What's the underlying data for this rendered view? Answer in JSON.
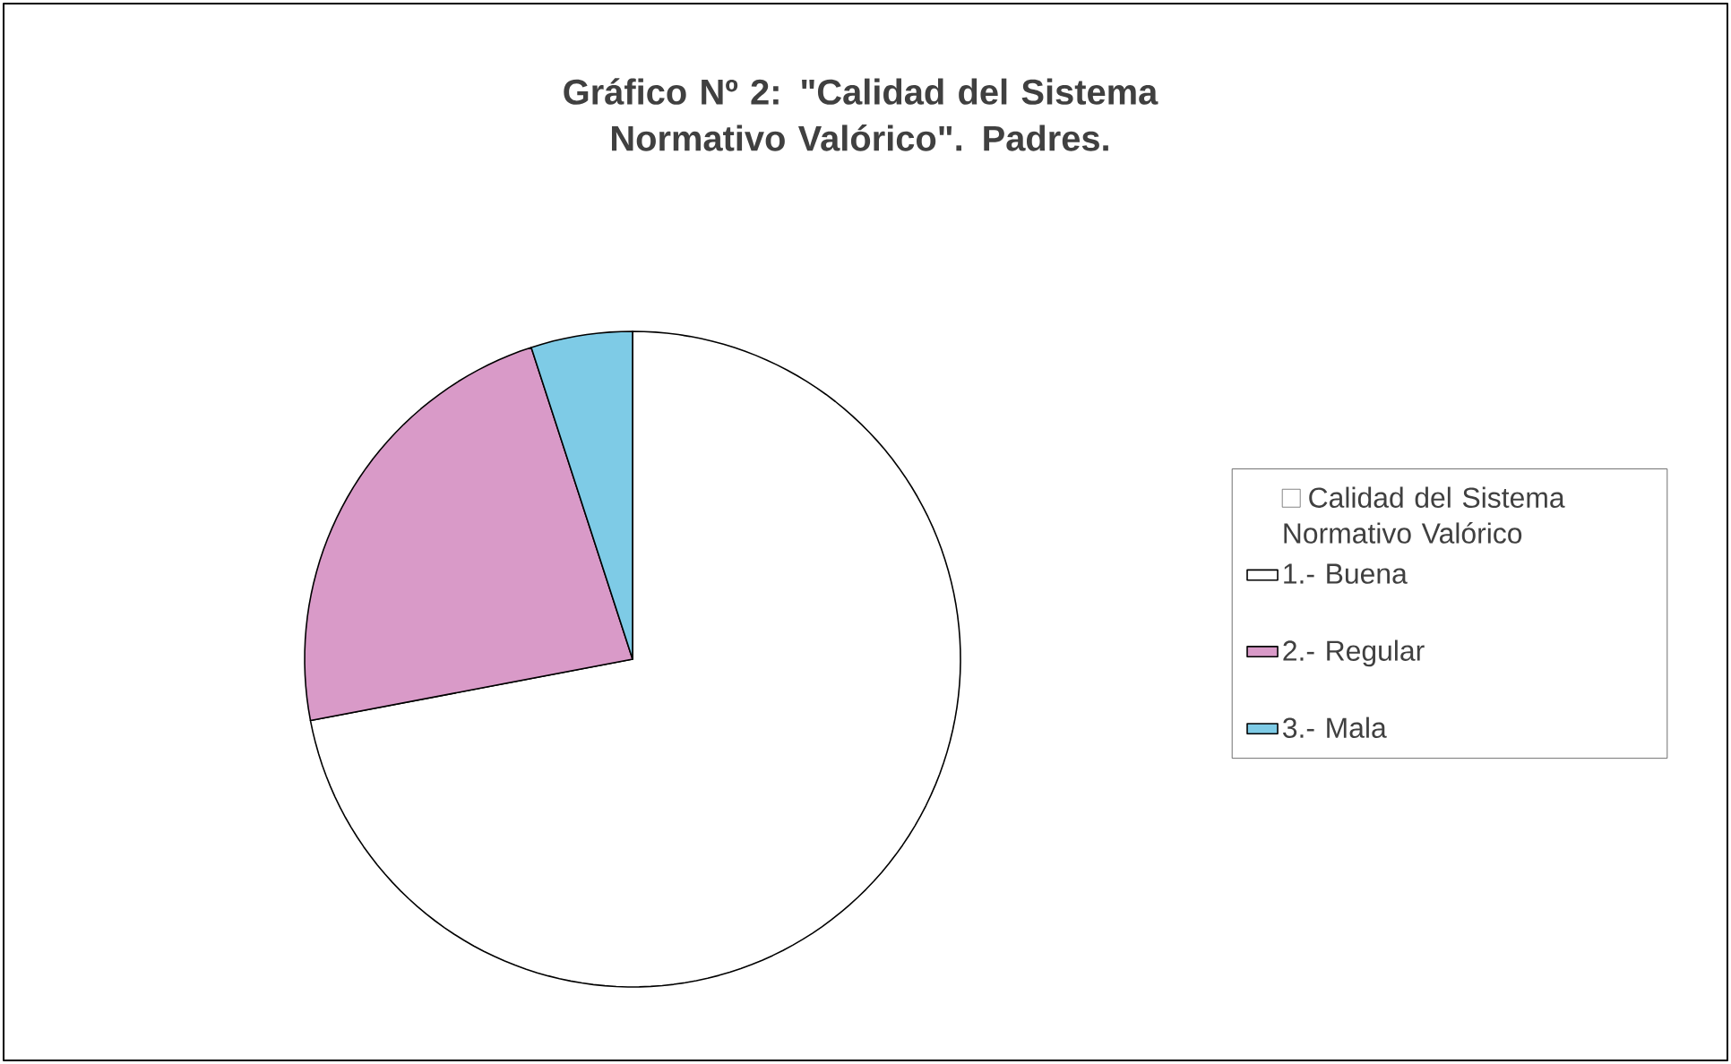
{
  "chart_data": {
    "type": "pie",
    "title": "Gráfico Nº 2: \"Calidad del Sistema Normativo Valórico\". Padres.",
    "legend_title": "Calidad del Sistema Normativo Valórico",
    "categories": [
      "1.- Buena",
      "2.- Regular",
      "3.- Mala"
    ],
    "values": [
      72,
      23,
      5
    ],
    "colors": [
      "#ffffff",
      "#d99ac8",
      "#7ecbe6"
    ],
    "legend": "right"
  }
}
